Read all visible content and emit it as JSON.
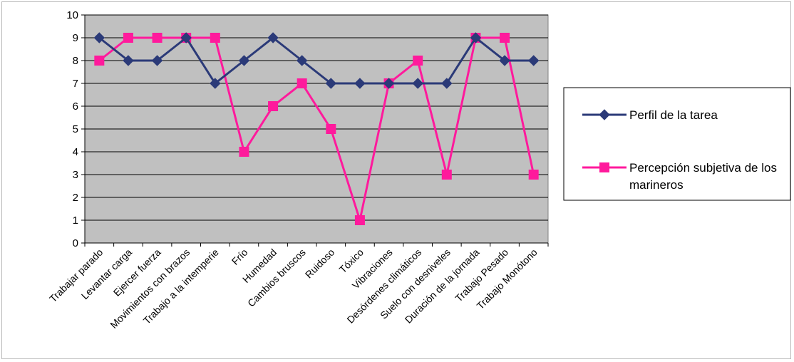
{
  "chart_data": {
    "type": "line",
    "categories": [
      "Trabajar parado",
      "Levantar carga",
      "Ejercer fuerza",
      "Movimientos con brazos",
      "Trabajo a la intemperie",
      "Frío",
      "Humedad",
      "Cambios bruscos",
      "Ruidoso",
      "Tóxico",
      "Vibraciones",
      "Desórdenes climáticos",
      "Suelo con desniveles",
      "Duración de la jornada",
      "Trabajo Pesado",
      "Trabajo Monótono"
    ],
    "series": [
      {
        "name": "Perfil de la tarea",
        "values": [
          9,
          8,
          8,
          9,
          7,
          8,
          9,
          8,
          7,
          7,
          7,
          7,
          7,
          9,
          8,
          8
        ],
        "color": "#2b3a78",
        "marker": "diamond"
      },
      {
        "name": "Percepción subjetiva de los marineros",
        "values": [
          8,
          9,
          9,
          9,
          9,
          4,
          6,
          7,
          5,
          1,
          7,
          8,
          3,
          9,
          9,
          3
        ],
        "color": "#ff1a9c",
        "marker": "square"
      }
    ],
    "ylim": [
      0,
      10
    ],
    "yticks": [
      0,
      1,
      2,
      3,
      4,
      5,
      6,
      7,
      8,
      9,
      10
    ],
    "grid": true,
    "plot_background": "#c0c0c0",
    "legend_position": "right",
    "title": "",
    "xlabel": "",
    "ylabel": ""
  }
}
